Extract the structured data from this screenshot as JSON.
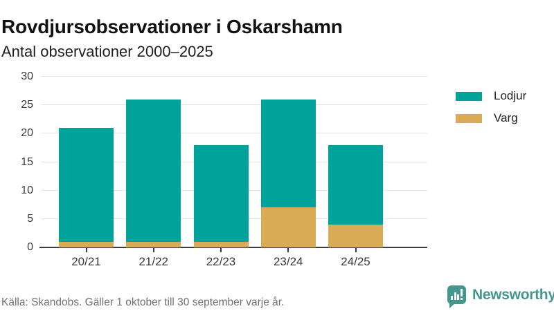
{
  "header": {
    "title": "Rovdjursobservationer i Oskarshamn",
    "subtitle": "Antal observationer 2000–2025"
  },
  "footer": {
    "source": "Källa: Skandobs. Gäller 1 oktober till 30 september varje år."
  },
  "branding": {
    "logo_text": "Newsworthy",
    "logo_icon": "bar-chart-speech-bubble-icon",
    "logo_color": "#44978f"
  },
  "colors": {
    "lodjur": "#00a39a",
    "varg": "#d9ab57",
    "gridline": "#e4e4e4",
    "axis": "#3c3c3c",
    "axis_text": "#383838",
    "footer_text": "#707070"
  },
  "chart_data": {
    "type": "bar",
    "stacked": true,
    "title": "Rovdjursobservationer i Oskarshamn",
    "subtitle": "Antal observationer 2000–2025",
    "categories": [
      "20/21",
      "21/22",
      "22/23",
      "23/24",
      "24/25"
    ],
    "series": [
      {
        "name": "Lodjur",
        "color": "#00a39a",
        "values": [
          20,
          25,
          17,
          19,
          14
        ]
      },
      {
        "name": "Varg",
        "color": "#d9ab57",
        "values": [
          1,
          1,
          1,
          7,
          4
        ]
      }
    ],
    "totals": [
      21,
      26,
      18,
      26,
      18
    ],
    "xlabel": "",
    "ylabel": "",
    "ylim": [
      0,
      30
    ],
    "yticks": [
      0,
      5,
      10,
      15,
      20,
      25,
      30
    ],
    "grid": "horizontal",
    "legend_position": "right-top",
    "legend_entries": [
      "Lodjur",
      "Varg"
    ]
  }
}
